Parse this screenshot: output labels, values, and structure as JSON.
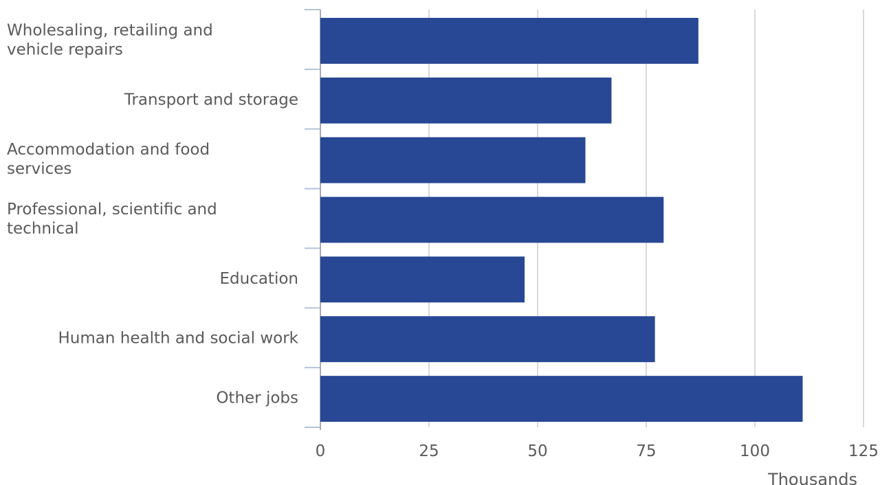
{
  "chart_data": {
    "type": "bar",
    "orientation": "horizontal",
    "categories": [
      [
        "Wholesaling, retailing and",
        "vehicle repairs"
      ],
      [
        "Transport and storage"
      ],
      [
        "Accommodation and food",
        "services"
      ],
      [
        "Professional, scientific and",
        "technical"
      ],
      [
        "Education"
      ],
      [
        "Human health and social work"
      ],
      [
        "Other jobs"
      ]
    ],
    "values": [
      87,
      67,
      61,
      79,
      47,
      77,
      111
    ],
    "xlim": [
      0,
      125
    ],
    "xticks": [
      0,
      25,
      50,
      75,
      100,
      125
    ],
    "xlabel": "Thousands",
    "grid": "vertical",
    "colors": {
      "bar": "#284794",
      "grid": "#d9d9d9",
      "axis": "#b4c3d8",
      "text": "#5a5a5a"
    }
  }
}
